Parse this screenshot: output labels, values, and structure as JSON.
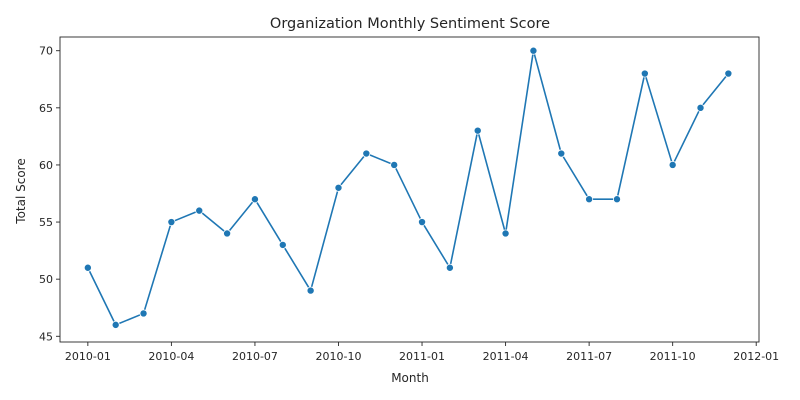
{
  "chart_data": {
    "type": "line",
    "title": "Organization Monthly Sentiment Score",
    "xlabel": "Month",
    "ylabel": "Total Score",
    "grid": false,
    "legend": "none",
    "color": "#1f77b4",
    "marker": "circle",
    "x_ticks": [
      "2010-01",
      "2010-04",
      "2010-07",
      "2010-10",
      "2011-01",
      "2011-04",
      "2011-07",
      "2011-10",
      "2012-01"
    ],
    "y_ticks": [
      45,
      50,
      55,
      60,
      65,
      70
    ],
    "xlim": [
      "2009-12",
      "2012-01"
    ],
    "ylim": [
      44.5,
      71.2
    ],
    "series": [
      {
        "x": [
          "2010-01",
          "2010-02",
          "2010-03",
          "2010-04",
          "2010-05",
          "2010-06",
          "2010-07",
          "2010-08",
          "2010-09",
          "2010-10",
          "2010-11",
          "2010-12",
          "2011-01",
          "2011-02",
          "2011-03",
          "2011-04",
          "2011-05",
          "2011-06",
          "2011-07",
          "2011-08",
          "2011-09",
          "2011-10",
          "2011-11",
          "2011-12"
        ],
        "values": [
          51,
          46,
          47,
          55,
          56,
          54,
          57,
          53,
          49,
          58,
          61,
          60,
          55,
          51,
          63,
          54,
          70,
          61,
          57,
          57,
          68,
          60,
          65,
          68
        ]
      }
    ]
  }
}
